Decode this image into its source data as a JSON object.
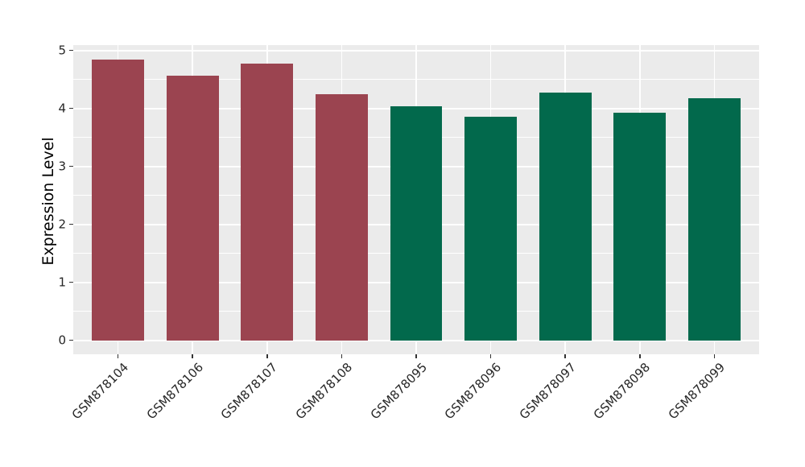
{
  "chart_data": {
    "type": "bar",
    "title": "",
    "xlabel": "",
    "ylabel": "Expression Level",
    "categories": [
      "GSM878104",
      "GSM878106",
      "GSM878107",
      "GSM878108",
      "GSM878095",
      "GSM878096",
      "GSM878097",
      "GSM878098",
      "GSM878099"
    ],
    "values": [
      4.85,
      4.56,
      4.77,
      4.24,
      4.04,
      3.86,
      4.27,
      3.93,
      4.17
    ],
    "bar_groups": [
      0,
      0,
      0,
      0,
      1,
      1,
      1,
      1,
      1
    ],
    "group_colors": [
      "#9B4450",
      "#02694C"
    ],
    "ylim": [
      0,
      5
    ],
    "yticks": [
      0,
      1,
      2,
      3,
      4,
      5
    ],
    "ytick_labels": [
      "0",
      "1",
      "2",
      "3",
      "4",
      "5"
    ],
    "minor_yticks": [
      0.5,
      1.5,
      2.5,
      3.5,
      4.5
    ],
    "legend": "none",
    "grid": "on",
    "panel_background": "#EBEBEB",
    "grid_color": "#FFFFFF",
    "tick_color": "#333333",
    "label_color": "#262626",
    "bar_width_fraction": 0.7,
    "x_label_rotation_deg": 45
  }
}
